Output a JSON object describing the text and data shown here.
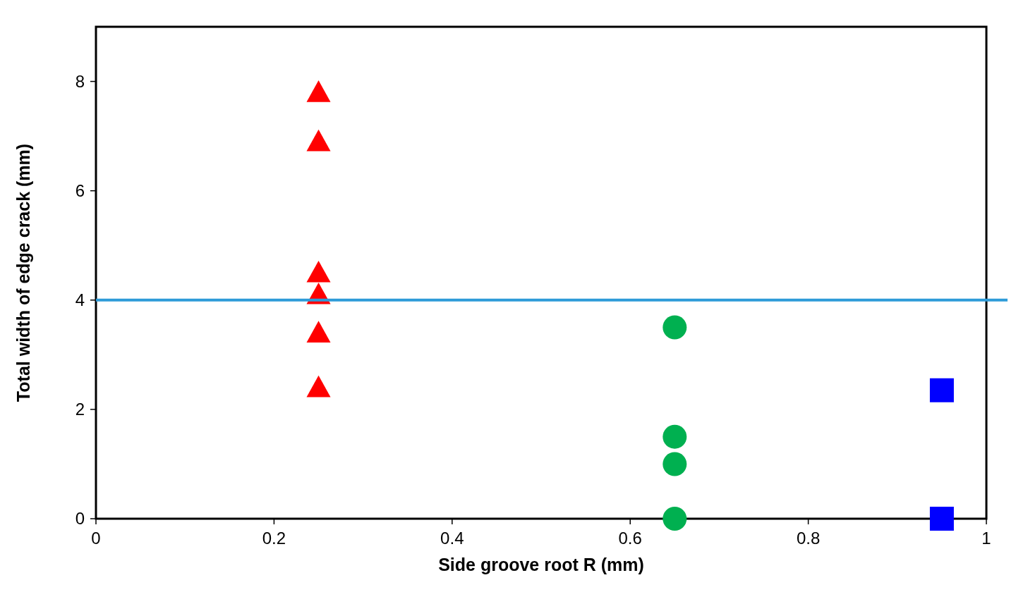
{
  "chart_data": {
    "type": "scatter",
    "xlabel": "Side groove root R (mm)",
    "ylabel": "Total width of edge crack  (mm)",
    "xlim": [
      0,
      1
    ],
    "xticks": [
      0,
      0.2,
      0.4,
      0.6,
      0.8,
      1
    ],
    "ylim": [
      0,
      9
    ],
    "yticks": [
      0,
      2,
      4,
      6,
      8
    ],
    "grid": false,
    "series": [
      {
        "color": "#ff0000",
        "marker": "triangle",
        "x": [
          0.25,
          0.25,
          0.25,
          0.25,
          0.25,
          0.25
        ],
        "values": [
          7.8,
          6.9,
          4.5,
          4.1,
          3.4,
          2.4
        ]
      },
      {
        "color": "#00b050",
        "marker": "circle",
        "x": [
          0.65,
          0.65,
          0.65,
          0.65
        ],
        "values": [
          3.5,
          1.5,
          1.0,
          0
        ]
      },
      {
        "color": "#0000ff",
        "marker": "square",
        "x": [
          0.95,
          0.95
        ],
        "values": [
          2.35,
          0
        ]
      }
    ],
    "ref_lines": [
      {
        "axis": "y",
        "value": 4,
        "color": "#2e9bd8"
      }
    ]
  }
}
